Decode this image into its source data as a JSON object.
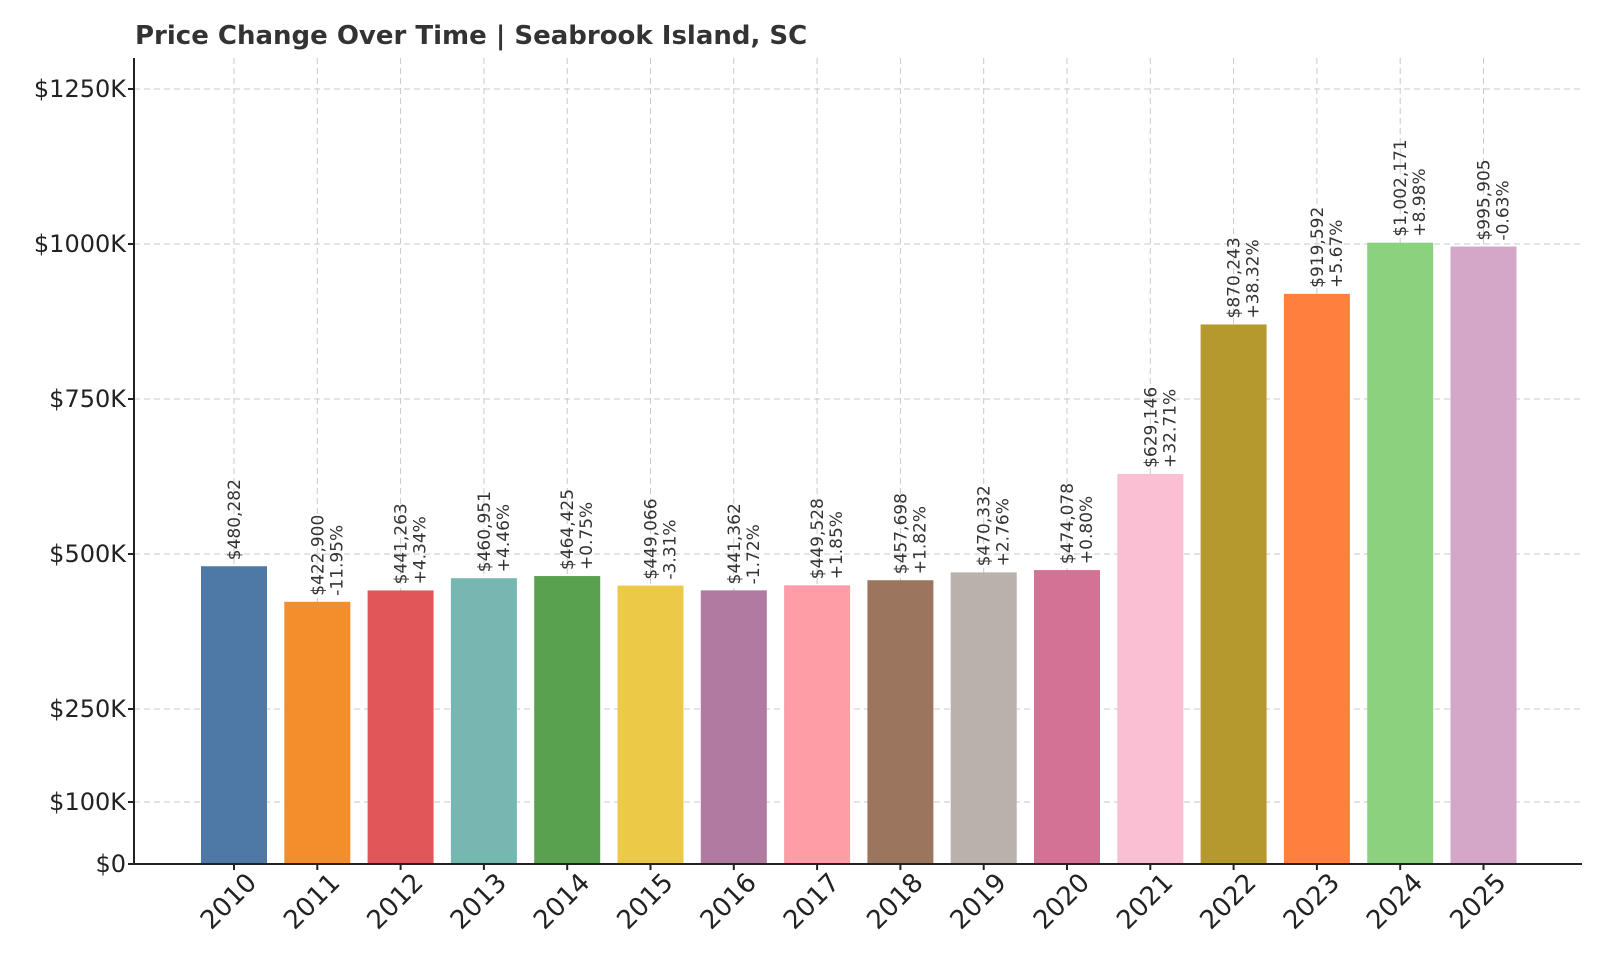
{
  "chart_data": {
    "type": "bar",
    "title": "Price Change Over Time | Seabrook Island, SC",
    "xlabel": "",
    "ylabel": "",
    "ylim": [
      0,
      1300000
    ],
    "grid": true,
    "categories": [
      "2010",
      "2011",
      "2012",
      "2013",
      "2014",
      "2015",
      "2016",
      "2017",
      "2018",
      "2019",
      "2020",
      "2021",
      "2022",
      "2023",
      "2024",
      "2025"
    ],
    "values": [
      480282,
      422900,
      441263,
      460951,
      464425,
      449066,
      441362,
      449528,
      457698,
      470332,
      474078,
      629146,
      870243,
      919592,
      1002171,
      995905
    ],
    "value_labels": [
      "$480,282",
      "$422,900",
      "$441,263",
      "$460,951",
      "$464,425",
      "$449,066",
      "$441,362",
      "$449,528",
      "$457,698",
      "$470,332",
      "$474,078",
      "$629,146",
      "$870,243",
      "$919,592",
      "$1,002,171",
      "$995,905"
    ],
    "change_labels": [
      "",
      "-11.95%",
      "+4.34%",
      "+4.46%",
      "+0.75%",
      "-3.31%",
      "-1.72%",
      "+1.85%",
      "+1.82%",
      "+2.76%",
      "+0.80%",
      "+32.71%",
      "+38.32%",
      "+5.67%",
      "+8.98%",
      "-0.63%"
    ],
    "yticks": [
      0,
      100000,
      250000,
      500000,
      750000,
      1000000,
      1250000
    ],
    "ytick_labels": [
      "$0",
      "$100K",
      "$250K",
      "$500K",
      "$750K",
      "$1000K",
      "$1250K"
    ],
    "colors": [
      "#4e79a7",
      "#f28e2b",
      "#e15759",
      "#76b7b2",
      "#59a14f",
      "#edc948",
      "#b07aa1",
      "#ff9da7",
      "#9c755f",
      "#bab0ac",
      "#d37295",
      "#fabfd2",
      "#b6992d",
      "#ff7f3f",
      "#8cd17d",
      "#d4a6c8"
    ]
  }
}
